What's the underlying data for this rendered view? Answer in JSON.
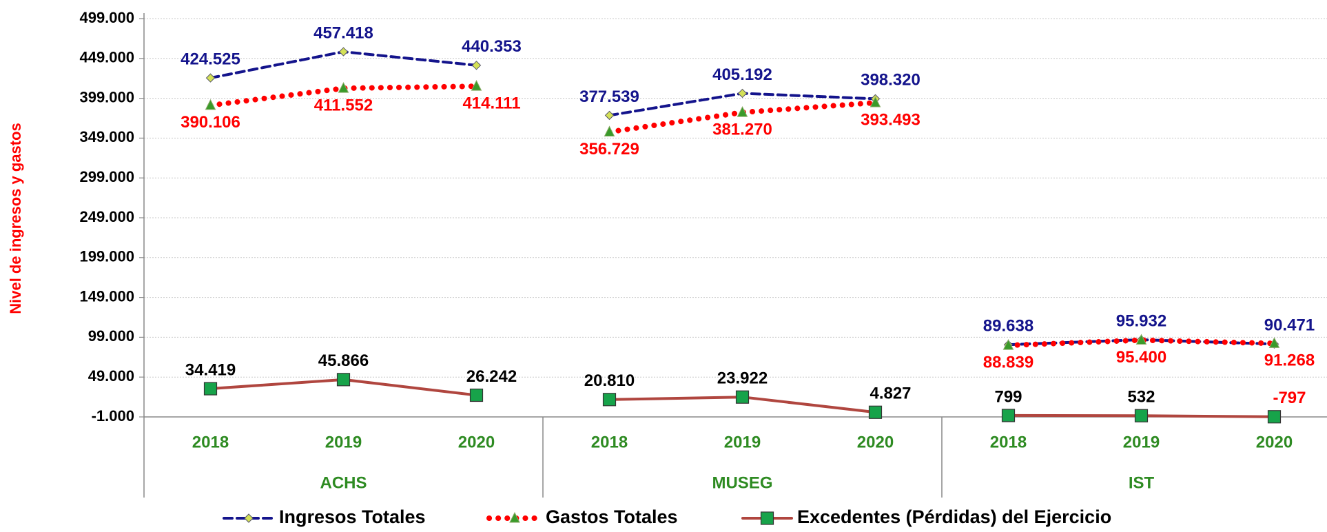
{
  "chart_data": {
    "type": "line",
    "y_label": "Nivel de ingresos y gastos",
    "categories": [
      "2018",
      "2019",
      "2020",
      "2018",
      "2019",
      "2020",
      "2018",
      "2019",
      "2020"
    ],
    "groups": [
      "ACHS",
      "MUSEG",
      "IST"
    ],
    "ylim": [
      -1000,
      499000
    ],
    "yticks": [
      {
        "value": -1000,
        "label": "-1.000"
      },
      {
        "value": 49000,
        "label": "49.000"
      },
      {
        "value": 99000,
        "label": "99.000"
      },
      {
        "value": 149000,
        "label": "149.000"
      },
      {
        "value": 199000,
        "label": "199.000"
      },
      {
        "value": 249000,
        "label": "249.000"
      },
      {
        "value": 299000,
        "label": "299.000"
      },
      {
        "value": 349000,
        "label": "349.000"
      },
      {
        "value": 399000,
        "label": "399.000"
      },
      {
        "value": 449000,
        "label": "449.000"
      },
      {
        "value": 499000,
        "label": "499.000"
      }
    ],
    "grid": true,
    "legend": "bottom",
    "series": [
      {
        "name": "Ingresos Totales",
        "color": "#14148c",
        "marker": "diamond",
        "marker_color": "#d4e157",
        "style": "dashed",
        "label_color": "#14148c",
        "label_pos": "above",
        "values": [
          424525,
          457418,
          440353,
          377539,
          405192,
          398320,
          89638,
          95932,
          90471
        ],
        "value_labels": [
          "424.525",
          "457.418",
          "440.353",
          "377.539",
          "405.192",
          "398.320",
          "89.638",
          "95.932",
          "90.471"
        ]
      },
      {
        "name": "Gastos Totales",
        "color": "#ff0000",
        "marker": "triangle",
        "marker_color": "#3a9a2a",
        "style": "dotted",
        "label_color": "#ff0000",
        "label_pos": "below",
        "values": [
          390106,
          411552,
          414111,
          356729,
          381270,
          393493,
          88839,
          95400,
          91268
        ],
        "value_labels": [
          "390.106",
          "411.552",
          "414.111",
          "356.729",
          "381.270",
          "393.493",
          "88.839",
          "95.400",
          "91.268"
        ]
      },
      {
        "name": "Excedentes (Pérdidas) del Ejercicio",
        "color": "#b0463f",
        "marker": "square",
        "marker_color": "#17a34a",
        "style": "solid",
        "label_color": "#000000",
        "label_pos": "above",
        "values": [
          34419,
          45866,
          26242,
          20810,
          23922,
          4827,
          799,
          532,
          -797
        ],
        "value_labels": [
          "34.419",
          "45.866",
          "26.242",
          "20.810",
          "23.922",
          "4.827",
          "799",
          "532",
          "-797"
        ]
      }
    ]
  }
}
